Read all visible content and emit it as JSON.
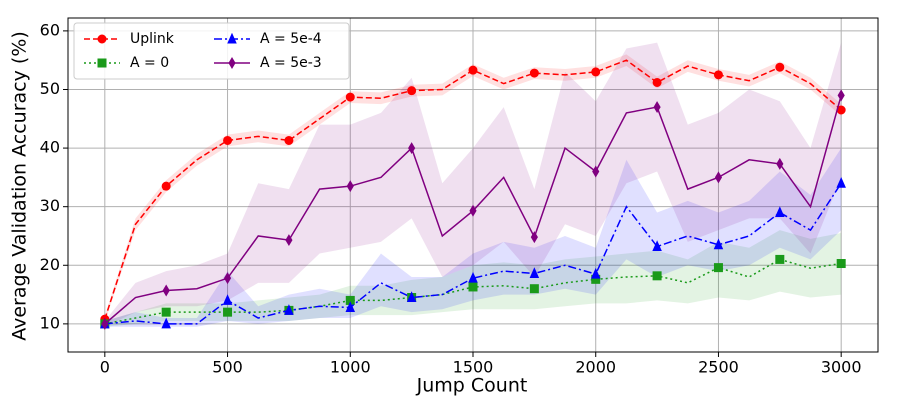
{
  "chart_data": {
    "type": "line",
    "x_label": "Jump Count",
    "y_label": "Average Validation Accuracy (%)",
    "x": [
      0,
      125,
      250,
      375,
      500,
      625,
      750,
      875,
      1000,
      1125,
      1250,
      1375,
      1500,
      1625,
      1750,
      1875,
      2000,
      2125,
      2250,
      2375,
      2500,
      2625,
      2750,
      2875,
      3000
    ],
    "series": [
      {
        "name": "Uplink",
        "color": "#ff0000",
        "dash": "6,3",
        "marker": "circle",
        "values": [
          10.8,
          27,
          33.5,
          38,
          41.3,
          42,
          41.3,
          45,
          48.7,
          48.5,
          49.8,
          50,
          53.3,
          51,
          52.8,
          52.5,
          53,
          55,
          51.2,
          54,
          52.5,
          51.5,
          53.8,
          51,
          46.5
        ],
        "lower": [
          10.3,
          26,
          32.5,
          37,
          40.3,
          41,
          40.3,
          44,
          47.7,
          47.5,
          48.8,
          49,
          52.3,
          50,
          51.8,
          51.5,
          52,
          54,
          50.2,
          53,
          51.5,
          50.5,
          52.8,
          50,
          45.5
        ],
        "upper": [
          11.3,
          28,
          34.5,
          39,
          42.3,
          43,
          42.3,
          46,
          49.7,
          49.5,
          50.8,
          51,
          54.3,
          52,
          53.8,
          53.5,
          54,
          56,
          52.2,
          55,
          53.5,
          52.5,
          54.8,
          52,
          47.5
        ]
      },
      {
        "name": "A = 0",
        "color": "#1a9a1a",
        "dash": "2,3",
        "marker": "square",
        "values": [
          10,
          11,
          12,
          12,
          12,
          12,
          12.3,
          13,
          14,
          14,
          14.5,
          15,
          16.3,
          16.5,
          16,
          17,
          17.6,
          18,
          18.2,
          17,
          19.6,
          18,
          21,
          19.5,
          20.3
        ],
        "lower": [
          9.5,
          10,
          10.5,
          10.5,
          10.5,
          10.5,
          10.5,
          11,
          11.5,
          11.5,
          11.5,
          12,
          12.5,
          12.5,
          12.5,
          13,
          13.5,
          13.5,
          14,
          13.5,
          14.5,
          14,
          15.5,
          14.5,
          15
        ],
        "upper": [
          10.5,
          12,
          13.5,
          13.5,
          13.5,
          14,
          14.5,
          15,
          16.5,
          16.5,
          17.5,
          18,
          20,
          20.5,
          20,
          21,
          21.5,
          22,
          22.5,
          21,
          24,
          23,
          26,
          24.5,
          25.5
        ]
      },
      {
        "name": "A = 5e-4",
        "color": "#0000ff",
        "dash": "8,3,2,3",
        "marker": "triangle",
        "values": [
          10,
          10.5,
          10,
          10,
          14,
          11,
          12.3,
          13,
          12.8,
          17,
          14.5,
          15,
          17.8,
          19,
          18.6,
          20,
          18.5,
          30,
          23.2,
          25,
          23.5,
          25,
          29,
          26,
          34
        ],
        "lower": [
          9.5,
          9.5,
          9.5,
          9.5,
          10.5,
          10,
          10.5,
          11,
          11,
          13,
          12,
          12.5,
          14,
          15,
          15,
          16,
          15,
          21,
          18,
          20,
          19,
          20,
          23,
          21,
          26
        ],
        "upper": [
          10.5,
          12,
          11,
          11,
          19,
          13,
          15,
          16,
          15,
          22,
          18,
          18,
          22,
          24,
          23,
          25,
          23,
          38,
          29,
          31,
          29,
          31,
          36,
          32,
          40
        ]
      },
      {
        "name": "A = 5e-3",
        "color": "#800080",
        "dash": "",
        "marker": "diamond",
        "values": [
          10,
          14.5,
          15.7,
          16,
          17.8,
          25,
          24.3,
          33,
          33.5,
          35,
          40,
          25,
          29.3,
          35,
          24.8,
          40,
          36,
          46,
          47,
          33,
          35,
          38,
          37.3,
          30,
          49
        ],
        "lower": [
          9.5,
          12,
          13,
          13,
          14,
          17,
          17,
          22,
          23,
          24,
          28,
          18,
          20,
          24,
          18,
          27,
          25,
          34,
          36,
          24,
          26,
          28,
          28,
          22,
          35
        ],
        "upper": [
          10.5,
          17,
          19,
          20,
          22,
          34,
          33,
          44,
          44,
          46,
          52,
          34,
          40,
          47,
          33,
          53,
          48,
          57,
          58,
          44,
          46,
          50,
          48,
          40,
          58
        ]
      }
    ],
    "marker_every": 2,
    "xlim": [
      -150,
      3150
    ],
    "ylim": [
      5.2,
      62.2
    ],
    "xticks": [
      0,
      500,
      1000,
      1500,
      2000,
      2500,
      3000
    ],
    "yticks": [
      10,
      20,
      30,
      40,
      50,
      60
    ],
    "grid": true,
    "legend": "upper left",
    "legend_columns": 2
  }
}
